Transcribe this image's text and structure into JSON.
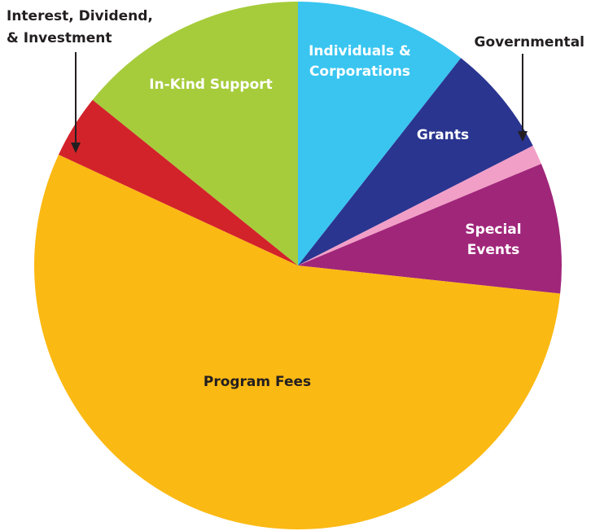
{
  "chart_data": {
    "type": "pie",
    "title": "",
    "start_angle_deg": 0,
    "direction": "clockwise",
    "slices": [
      {
        "label": "Individuals & Corporations",
        "value": 10.6,
        "color": "#39c5f0"
      },
      {
        "label": "Grants",
        "value": 6.9,
        "color": "#2a3590"
      },
      {
        "label": "Governmental",
        "value": 1.2,
        "color": "#f29fc8"
      },
      {
        "label": "Special Events",
        "value": 8.0,
        "color": "#a0267a"
      },
      {
        "label": "Program Fees",
        "value": 55.2,
        "color": "#fbb913"
      },
      {
        "label": "Interest, Dividend, & Investment",
        "value": 3.9,
        "color": "#d2232a"
      },
      {
        "label": "In-Kind Support",
        "value": 14.2,
        "color": "#a6cc3b"
      }
    ]
  },
  "labels": {
    "individuals": [
      "Individuals &",
      "Corporations"
    ],
    "grants": [
      "Grants"
    ],
    "governmental": [
      "Governmental"
    ],
    "special_events": [
      "Special",
      "Events"
    ],
    "program_fees": [
      "Program Fees"
    ],
    "interest": [
      "Interest, Dividend,",
      "& Investment"
    ],
    "in_kind": [
      "In-Kind Support"
    ]
  }
}
